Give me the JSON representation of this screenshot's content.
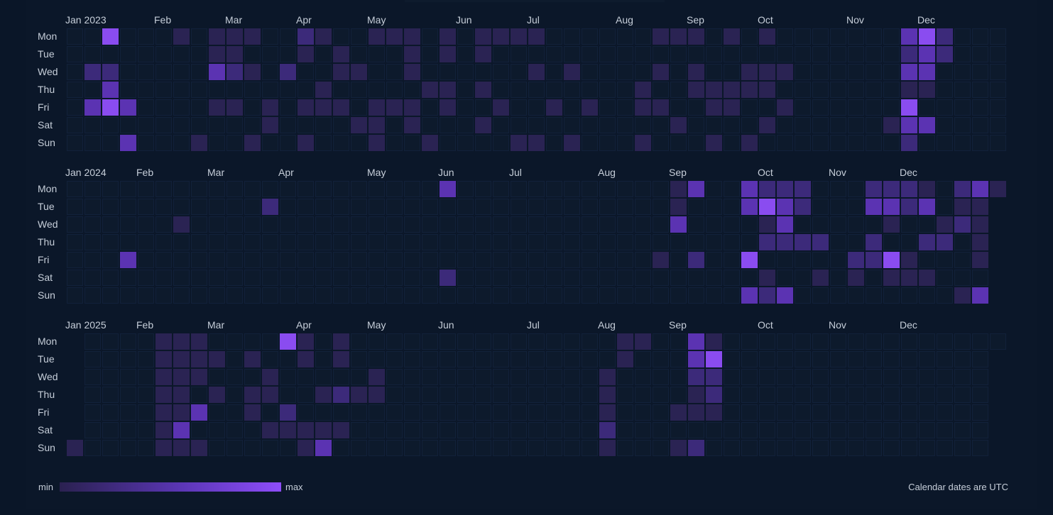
{
  "day_labels": [
    "Mon",
    "Tue",
    "Wed",
    "Thu",
    "Fri",
    "Sat",
    "Sun"
  ],
  "years": [
    {
      "year": 2023,
      "months": [
        {
          "label": "Jan 2023",
          "week": 0
        },
        {
          "label": "Feb",
          "week": 5
        },
        {
          "label": "Mar",
          "week": 9
        },
        {
          "label": "Apr",
          "week": 13
        },
        {
          "label": "May",
          "week": 17
        },
        {
          "label": "Jun",
          "week": 22
        },
        {
          "label": "Jul",
          "week": 26
        },
        {
          "label": "Aug",
          "week": 31
        },
        {
          "label": "Sep",
          "week": 35
        },
        {
          "label": "Oct",
          "week": 39
        },
        {
          "label": "Nov",
          "week": 44
        },
        {
          "label": "Dec",
          "week": 48
        }
      ],
      "first_week_start_row": 0,
      "week_count": 53,
      "active_cells": [
        [
          2,
          0,
          4
        ],
        [
          6,
          0,
          1
        ],
        [
          8,
          0,
          1
        ],
        [
          9,
          0,
          1
        ],
        [
          10,
          0,
          1
        ],
        [
          13,
          0,
          2
        ],
        [
          14,
          0,
          1
        ],
        [
          17,
          0,
          1
        ],
        [
          18,
          0,
          1
        ],
        [
          19,
          0,
          1
        ],
        [
          21,
          0,
          1
        ],
        [
          23,
          0,
          1
        ],
        [
          24,
          0,
          1
        ],
        [
          25,
          0,
          1
        ],
        [
          26,
          0,
          1
        ],
        [
          33,
          0,
          1
        ],
        [
          34,
          0,
          1
        ],
        [
          35,
          0,
          1
        ],
        [
          37,
          0,
          1
        ],
        [
          39,
          0,
          1
        ],
        [
          47,
          0,
          3
        ],
        [
          48,
          0,
          4
        ],
        [
          49,
          0,
          2
        ],
        [
          8,
          1,
          1
        ],
        [
          9,
          1,
          1
        ],
        [
          13,
          1,
          1
        ],
        [
          15,
          1,
          1
        ],
        [
          19,
          1,
          1
        ],
        [
          21,
          1,
          1
        ],
        [
          23,
          1,
          1
        ],
        [
          47,
          1,
          2
        ],
        [
          48,
          1,
          3
        ],
        [
          49,
          1,
          2
        ],
        [
          1,
          2,
          2
        ],
        [
          2,
          2,
          2
        ],
        [
          8,
          2,
          3
        ],
        [
          9,
          2,
          2
        ],
        [
          10,
          2,
          1
        ],
        [
          12,
          2,
          2
        ],
        [
          15,
          2,
          1
        ],
        [
          16,
          2,
          1
        ],
        [
          19,
          2,
          1
        ],
        [
          26,
          2,
          1
        ],
        [
          28,
          2,
          1
        ],
        [
          33,
          2,
          1
        ],
        [
          35,
          2,
          1
        ],
        [
          38,
          2,
          1
        ],
        [
          39,
          2,
          1
        ],
        [
          40,
          2,
          1
        ],
        [
          47,
          2,
          3
        ],
        [
          48,
          2,
          3
        ],
        [
          2,
          3,
          3
        ],
        [
          14,
          3,
          1
        ],
        [
          20,
          3,
          1
        ],
        [
          21,
          3,
          1
        ],
        [
          23,
          3,
          1
        ],
        [
          32,
          3,
          1
        ],
        [
          35,
          3,
          1
        ],
        [
          36,
          3,
          1
        ],
        [
          37,
          3,
          1
        ],
        [
          38,
          3,
          1
        ],
        [
          39,
          3,
          1
        ],
        [
          47,
          3,
          1
        ],
        [
          48,
          3,
          1
        ],
        [
          1,
          4,
          3
        ],
        [
          2,
          4,
          4
        ],
        [
          3,
          4,
          3
        ],
        [
          8,
          4,
          1
        ],
        [
          9,
          4,
          1
        ],
        [
          11,
          4,
          1
        ],
        [
          13,
          4,
          1
        ],
        [
          14,
          4,
          1
        ],
        [
          15,
          4,
          1
        ],
        [
          17,
          4,
          1
        ],
        [
          18,
          4,
          1
        ],
        [
          19,
          4,
          1
        ],
        [
          21,
          4,
          1
        ],
        [
          24,
          4,
          1
        ],
        [
          27,
          4,
          1
        ],
        [
          29,
          4,
          1
        ],
        [
          32,
          4,
          1
        ],
        [
          33,
          4,
          1
        ],
        [
          36,
          4,
          1
        ],
        [
          37,
          4,
          1
        ],
        [
          40,
          4,
          1
        ],
        [
          47,
          4,
          4
        ],
        [
          11,
          5,
          1
        ],
        [
          16,
          5,
          1
        ],
        [
          17,
          5,
          1
        ],
        [
          19,
          5,
          1
        ],
        [
          23,
          5,
          1
        ],
        [
          34,
          5,
          1
        ],
        [
          39,
          5,
          1
        ],
        [
          46,
          5,
          1
        ],
        [
          47,
          5,
          3
        ],
        [
          48,
          5,
          3
        ],
        [
          3,
          6,
          3
        ],
        [
          7,
          6,
          1
        ],
        [
          10,
          6,
          1
        ],
        [
          13,
          6,
          1
        ],
        [
          17,
          6,
          1
        ],
        [
          20,
          6,
          1
        ],
        [
          25,
          6,
          1
        ],
        [
          26,
          6,
          1
        ],
        [
          28,
          6,
          1
        ],
        [
          32,
          6,
          1
        ],
        [
          36,
          6,
          1
        ],
        [
          38,
          6,
          1
        ],
        [
          47,
          6,
          2
        ]
      ]
    },
    {
      "year": 2024,
      "months": [
        {
          "label": "Jan 2024",
          "week": 0
        },
        {
          "label": "Feb",
          "week": 4
        },
        {
          "label": "Mar",
          "week": 8
        },
        {
          "label": "Apr",
          "week": 12
        },
        {
          "label": "May",
          "week": 17
        },
        {
          "label": "Jun",
          "week": 21
        },
        {
          "label": "Jul",
          "week": 25
        },
        {
          "label": "Aug",
          "week": 30
        },
        {
          "label": "Sep",
          "week": 34
        },
        {
          "label": "Oct",
          "week": 39
        },
        {
          "label": "Nov",
          "week": 43
        },
        {
          "label": "Dec",
          "week": 47
        }
      ],
      "first_week_start_row": 0,
      "week_count": 53,
      "active_cells": [
        [
          21,
          0,
          3
        ],
        [
          34,
          0,
          1
        ],
        [
          35,
          0,
          3
        ],
        [
          38,
          0,
          3
        ],
        [
          39,
          0,
          2
        ],
        [
          40,
          0,
          2
        ],
        [
          41,
          0,
          2
        ],
        [
          45,
          0,
          2
        ],
        [
          46,
          0,
          2
        ],
        [
          47,
          0,
          2
        ],
        [
          48,
          0,
          1
        ],
        [
          50,
          0,
          2
        ],
        [
          51,
          0,
          3
        ],
        [
          52,
          0,
          1
        ],
        [
          11,
          1,
          2
        ],
        [
          34,
          1,
          1
        ],
        [
          38,
          1,
          3
        ],
        [
          39,
          1,
          4
        ],
        [
          40,
          1,
          3
        ],
        [
          41,
          1,
          2
        ],
        [
          45,
          1,
          3
        ],
        [
          46,
          1,
          3
        ],
        [
          47,
          1,
          2
        ],
        [
          48,
          1,
          3
        ],
        [
          50,
          1,
          1
        ],
        [
          51,
          1,
          1
        ],
        [
          6,
          2,
          1
        ],
        [
          34,
          2,
          3
        ],
        [
          39,
          2,
          1
        ],
        [
          40,
          2,
          3
        ],
        [
          46,
          2,
          1
        ],
        [
          49,
          2,
          1
        ],
        [
          50,
          2,
          2
        ],
        [
          51,
          2,
          1
        ],
        [
          39,
          3,
          2
        ],
        [
          40,
          3,
          2
        ],
        [
          41,
          3,
          2
        ],
        [
          42,
          3,
          2
        ],
        [
          45,
          3,
          2
        ],
        [
          48,
          3,
          2
        ],
        [
          49,
          3,
          2
        ],
        [
          51,
          3,
          1
        ],
        [
          3,
          4,
          3
        ],
        [
          33,
          4,
          1
        ],
        [
          35,
          4,
          2
        ],
        [
          38,
          4,
          4
        ],
        [
          44,
          4,
          2
        ],
        [
          45,
          4,
          2
        ],
        [
          46,
          4,
          4
        ],
        [
          47,
          4,
          1
        ],
        [
          51,
          4,
          1
        ],
        [
          21,
          5,
          2
        ],
        [
          39,
          5,
          1
        ],
        [
          42,
          5,
          1
        ],
        [
          44,
          5,
          1
        ],
        [
          46,
          5,
          1
        ],
        [
          47,
          5,
          1
        ],
        [
          48,
          5,
          1
        ],
        [
          38,
          6,
          3
        ],
        [
          39,
          6,
          2
        ],
        [
          40,
          6,
          3
        ],
        [
          50,
          6,
          1
        ],
        [
          51,
          6,
          3
        ]
      ]
    },
    {
      "year": 2025,
      "months": [
        {
          "label": "Jan 2025",
          "week": 0
        },
        {
          "label": "Feb",
          "week": 4
        },
        {
          "label": "Mar",
          "week": 8
        },
        {
          "label": "Apr",
          "week": 13
        },
        {
          "label": "May",
          "week": 17
        },
        {
          "label": "Jun",
          "week": 21
        },
        {
          "label": "Jul",
          "week": 26
        },
        {
          "label": "Aug",
          "week": 30
        },
        {
          "label": "Sep",
          "week": 34
        },
        {
          "label": "Oct",
          "week": 39
        },
        {
          "label": "Nov",
          "week": 43
        },
        {
          "label": "Dec",
          "week": 47
        }
      ],
      "first_week_start_row": 6,
      "week_count": 53,
      "active_cells": [
        [
          5,
          0,
          1
        ],
        [
          6,
          0,
          1
        ],
        [
          7,
          0,
          1
        ],
        [
          12,
          0,
          4
        ],
        [
          13,
          0,
          1
        ],
        [
          15,
          0,
          1
        ],
        [
          31,
          0,
          1
        ],
        [
          32,
          0,
          1
        ],
        [
          35,
          0,
          3
        ],
        [
          36,
          0,
          1
        ],
        [
          5,
          1,
          1
        ],
        [
          6,
          1,
          1
        ],
        [
          7,
          1,
          1
        ],
        [
          8,
          1,
          1
        ],
        [
          10,
          1,
          1
        ],
        [
          13,
          1,
          1
        ],
        [
          15,
          1,
          1
        ],
        [
          31,
          1,
          1
        ],
        [
          35,
          1,
          3
        ],
        [
          36,
          1,
          4
        ],
        [
          5,
          2,
          1
        ],
        [
          6,
          2,
          1
        ],
        [
          7,
          2,
          1
        ],
        [
          11,
          2,
          1
        ],
        [
          17,
          2,
          1
        ],
        [
          30,
          2,
          1
        ],
        [
          35,
          2,
          2
        ],
        [
          36,
          2,
          2
        ],
        [
          5,
          3,
          1
        ],
        [
          6,
          3,
          1
        ],
        [
          8,
          3,
          1
        ],
        [
          10,
          3,
          1
        ],
        [
          11,
          3,
          1
        ],
        [
          14,
          3,
          1
        ],
        [
          15,
          3,
          2
        ],
        [
          16,
          3,
          1
        ],
        [
          17,
          3,
          1
        ],
        [
          30,
          3,
          1
        ],
        [
          35,
          3,
          1
        ],
        [
          36,
          3,
          2
        ],
        [
          5,
          4,
          1
        ],
        [
          6,
          4,
          1
        ],
        [
          7,
          4,
          3
        ],
        [
          10,
          4,
          1
        ],
        [
          12,
          4,
          2
        ],
        [
          30,
          4,
          1
        ],
        [
          34,
          4,
          1
        ],
        [
          35,
          4,
          1
        ],
        [
          36,
          4,
          1
        ],
        [
          5,
          5,
          1
        ],
        [
          6,
          5,
          3
        ],
        [
          11,
          5,
          1
        ],
        [
          12,
          5,
          1
        ],
        [
          13,
          5,
          1
        ],
        [
          14,
          5,
          1
        ],
        [
          15,
          5,
          1
        ],
        [
          30,
          5,
          2
        ],
        [
          0,
          6,
          1
        ],
        [
          5,
          6,
          1
        ],
        [
          6,
          6,
          1
        ],
        [
          7,
          6,
          1
        ],
        [
          13,
          6,
          1
        ],
        [
          14,
          6,
          3
        ],
        [
          30,
          6,
          1
        ],
        [
          34,
          6,
          1
        ],
        [
          35,
          6,
          2
        ]
      ]
    }
  ],
  "legend": {
    "min_label": "min",
    "max_label": "max",
    "colors": [
      "#2a2150",
      "#5b36b5",
      "#8e4dfa"
    ]
  },
  "footer_note": "Calendar dates are UTC",
  "colors": {
    "background": "#0a1628",
    "empty_cell": "#0d1a2c",
    "cell_border": "#12213a",
    "level_1": "#2a2353",
    "level_2": "#3c2a7a",
    "level_3": "#5b33b2",
    "level_4": "#8a4cf0"
  }
}
